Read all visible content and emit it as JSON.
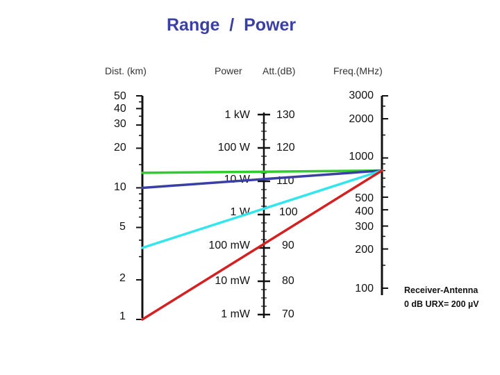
{
  "title": "Range  /  Power",
  "headers": {
    "distance": "Dist. (km)",
    "power": "Power",
    "attenuation": "Att.(dB)",
    "frequency": "Freq.(MHz)"
  },
  "nomogram": {
    "distance_scale": [
      "50",
      "40",
      "30",
      "20",
      "10",
      "5",
      "2",
      "1"
    ],
    "power_scale": [
      "1 kW",
      "100 W",
      "10 W",
      "1 W",
      "100 mW",
      "10 mW",
      "1 mW"
    ],
    "attenuation_scale": [
      "130",
      "120",
      "110",
      "100",
      "90",
      "80",
      "70"
    ],
    "frequency_scale": [
      "3000",
      "2000",
      "1000",
      "500",
      "400",
      "300",
      "200",
      "100"
    ],
    "pivot_frequency_mhz": 800,
    "lines": [
      {
        "color": "#2ecc2e",
        "from_distance_km": 13
      },
      {
        "color": "#3a3fa6",
        "from_distance_km": 10
      },
      {
        "color": "#33e6ee",
        "from_distance_km": 3.5
      },
      {
        "color": "#d42020",
        "from_distance_km": 1
      }
    ]
  },
  "note": {
    "line1": "Receiver-Antenna",
    "line2": "0 dB  URX= 200 µV"
  }
}
